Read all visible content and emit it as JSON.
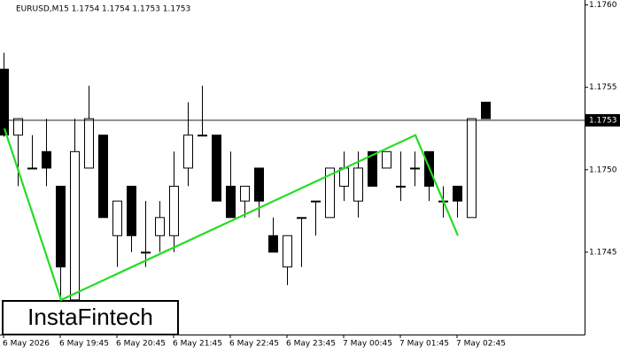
{
  "chart_data": {
    "type": "candlestick",
    "title": "EURUSD,M15  1.1754 1.1754 1.1753 1.1753",
    "logo": "InstaFintech",
    "categories": [
      "6 May 2026",
      null,
      null,
      null,
      "6 May 19:45",
      null,
      null,
      null,
      "6 May 20:45",
      null,
      null,
      null,
      "6 May 21:45",
      null,
      null,
      null,
      "6 May 22:45",
      null,
      null,
      null,
      "6 May 23:45",
      null,
      null,
      null,
      "7 May 00:45",
      null,
      null,
      null,
      "7 May 01:45",
      null,
      null,
      null,
      "7 May 02:45",
      null,
      null
    ],
    "open": [
      1.17561,
      1.17521,
      1.17501,
      1.17511,
      1.1749,
      1.17421,
      1.17501,
      1.17521,
      1.1746,
      1.1749,
      1.1745,
      1.1746,
      1.1746,
      1.17501,
      1.17521,
      1.17521,
      1.1749,
      1.17481,
      1.17501,
      1.1746,
      1.17441,
      1.17471,
      1.17481,
      1.17471,
      1.1749,
      1.17481,
      1.17511,
      1.17501,
      1.1749,
      1.17501,
      1.17511,
      1.17481,
      1.1749,
      1.17471,
      1.17541
    ],
    "high": [
      1.17571,
      1.17531,
      1.17521,
      1.17531,
      1.1749,
      1.17531,
      1.17551,
      1.17521,
      1.17481,
      1.1749,
      1.17481,
      1.17481,
      1.17511,
      1.17541,
      1.17551,
      1.17521,
      1.17511,
      1.1749,
      1.17501,
      1.17471,
      1.1746,
      1.17471,
      1.17481,
      1.17501,
      1.17511,
      1.17511,
      1.17511,
      1.17511,
      1.17511,
      1.17511,
      1.17511,
      1.1749,
      1.1749,
      1.17531,
      1.17541
    ],
    "low": [
      1.1752,
      1.1749,
      1.17501,
      1.1749,
      1.17421,
      1.17421,
      1.17501,
      1.17471,
      1.17441,
      1.1745,
      1.17441,
      1.1745,
      1.1745,
      1.1749,
      1.17521,
      1.17481,
      1.17471,
      1.17471,
      1.17471,
      1.1745,
      1.1743,
      1.17441,
      1.1746,
      1.17471,
      1.17481,
      1.17471,
      1.1749,
      1.17501,
      1.17481,
      1.1749,
      1.17481,
      1.17471,
      1.17471,
      1.17471,
      1.17531
    ],
    "close": [
      1.17521,
      1.17531,
      1.17501,
      1.17501,
      1.17441,
      1.17511,
      1.17531,
      1.17471,
      1.17481,
      1.1746,
      1.1745,
      1.17471,
      1.1749,
      1.17521,
      1.17521,
      1.17481,
      1.17471,
      1.1749,
      1.17481,
      1.1745,
      1.1746,
      1.17471,
      1.17481,
      1.17501,
      1.17501,
      1.17501,
      1.1749,
      1.17511,
      1.1749,
      1.17501,
      1.1749,
      1.17481,
      1.17481,
      1.17531,
      1.17531
    ],
    "ylim": [
      1.174,
      1.17603
    ],
    "yticks": [
      1.1745,
      {
        "value": 1.175,
        "label": "1.1750"
      },
      1.1755,
      {
        "value": 1.176,
        "label": "1.1760"
      }
    ],
    "last_price": 1.1753,
    "pattern": {
      "color": "#22dd22",
      "index": [
        0,
        4,
        29,
        32
      ],
      "values": [
        1.17525,
        1.17421,
        1.17521,
        1.1746
      ]
    }
  }
}
